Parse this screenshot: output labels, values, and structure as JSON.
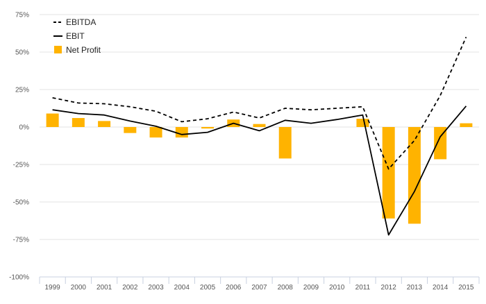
{
  "chart_data": {
    "type": "bar",
    "categories": [
      "1999",
      "2000",
      "2001",
      "2002",
      "2003",
      "2004",
      "2005",
      "2006",
      "2007",
      "2008",
      "2009",
      "2010",
      "2011",
      "2012",
      "2013",
      "2014",
      "2015"
    ],
    "series": [
      {
        "name": "EBITDA",
        "type": "line",
        "style": "dashed",
        "color": "#000000",
        "values": [
          19.5,
          16,
          15.5,
          13.5,
          10.5,
          3.5,
          5.5,
          10,
          6,
          12.5,
          11.5,
          12.5,
          13.5,
          -28,
          -9,
          21,
          60
        ]
      },
      {
        "name": "EBIT",
        "type": "line",
        "style": "solid",
        "color": "#000000",
        "values": [
          11.5,
          9,
          8,
          4,
          0.5,
          -5,
          -3.5,
          2.5,
          -2.5,
          4.5,
          2.5,
          5,
          8,
          -72,
          -43,
          -6.5,
          14
        ]
      },
      {
        "name": "Net Profit",
        "type": "bar",
        "color": "#FFB300",
        "values": [
          9,
          6,
          4,
          -4,
          -7,
          -7,
          -1,
          5,
          2,
          -21,
          0,
          0,
          5.5,
          -61,
          -64.5,
          -21.5,
          2.5
        ]
      }
    ],
    "y_ticks": [
      "75%",
      "50%",
      "25%",
      "0%",
      "-25%",
      "-50%",
      "-75%",
      "-100%"
    ],
    "ylim": [
      -100,
      75
    ],
    "grid": true,
    "legend_position": "top-left"
  }
}
